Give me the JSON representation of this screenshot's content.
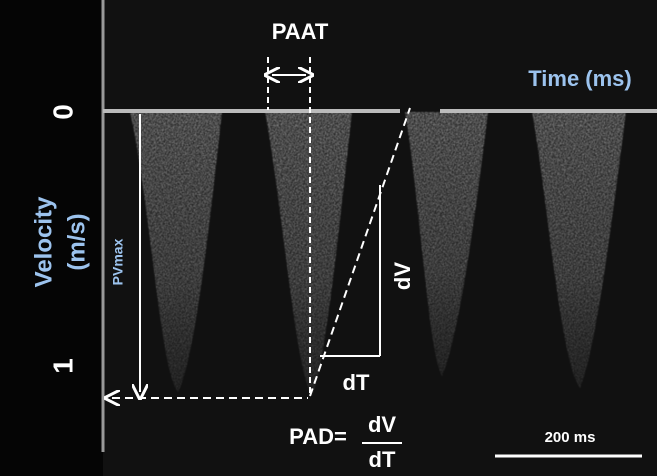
{
  "labels": {
    "paat": "PAAT",
    "time_axis": "Time (ms)",
    "zero": "0",
    "one": "1",
    "velocity_axis": "Velocity",
    "velocity_unit": "(m/s)",
    "pvmax": "PVmax",
    "dv": "dV",
    "dt": "dT",
    "pad": "PAD=",
    "pad_numerator": "dV",
    "pad_denominator": "dT",
    "scale_bar": "200 ms"
  }
}
